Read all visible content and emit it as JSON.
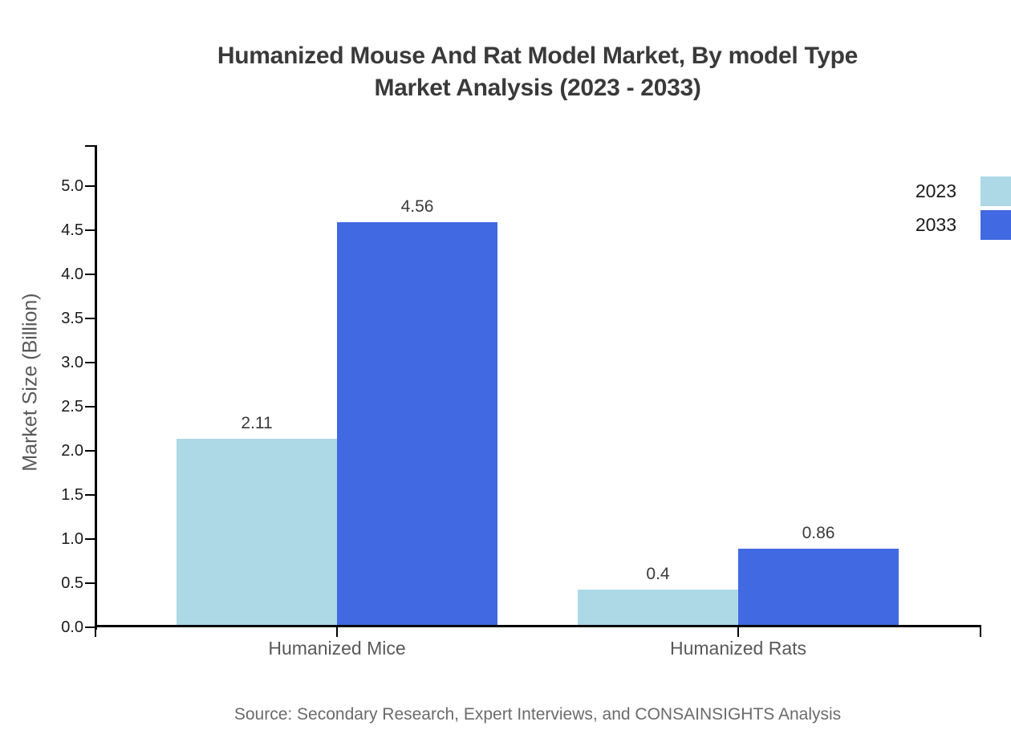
{
  "title": {
    "line1": "Humanized Mouse And Rat Model Market, By model Type",
    "line2": "Market Analysis (2023 - 2033)"
  },
  "source": {
    "text": "Source: Secondary Research, Expert Interviews, and CONSAINSIGHTS Analysis"
  },
  "legend": {
    "items": [
      {
        "label": "2023",
        "color": "#ADD8E6"
      },
      {
        "label": "2033",
        "color": "#4169E1"
      }
    ]
  },
  "chart_data": {
    "type": "bar",
    "title": "Humanized Mouse And Rat Model Market, By model Type Market Analysis (2023 - 2033)",
    "categories": [
      "Humanized Mice",
      "Humanized Rats"
    ],
    "series": [
      {
        "name": "2023",
        "color": "#ADD8E6",
        "values": [
          2.11,
          0.4
        ],
        "value_labels": [
          "2.11",
          "0.4"
        ]
      },
      {
        "name": "2033",
        "color": "#4169E1",
        "values": [
          4.56,
          0.86
        ],
        "value_labels": [
          "4.56",
          "0.86"
        ]
      }
    ],
    "xlabel": "",
    "ylabel": "Market Size (Billion)",
    "ylim": [
      0,
      5.5
    ],
    "yticks": [
      0.0,
      0.5,
      1.0,
      1.5,
      2.0,
      2.5,
      3.0,
      3.5,
      4.0,
      4.5,
      5.0
    ],
    "ytick_labels": [
      "0.0",
      "0.5",
      "1.0",
      "1.5",
      "2.0",
      "2.5",
      "3.0",
      "3.5",
      "4.0",
      "4.5",
      "5.0"
    ],
    "grid": false,
    "legend_position": "top-right",
    "axis_color": "#000000",
    "colors": {
      "title_text": "#3a3a3a",
      "tick_text": "#1a1a1a",
      "category_text": "#595959",
      "value_label_text": "#3a3a3a",
      "ylabel_text": "#595959",
      "source_text": "#6b6b6b"
    }
  }
}
